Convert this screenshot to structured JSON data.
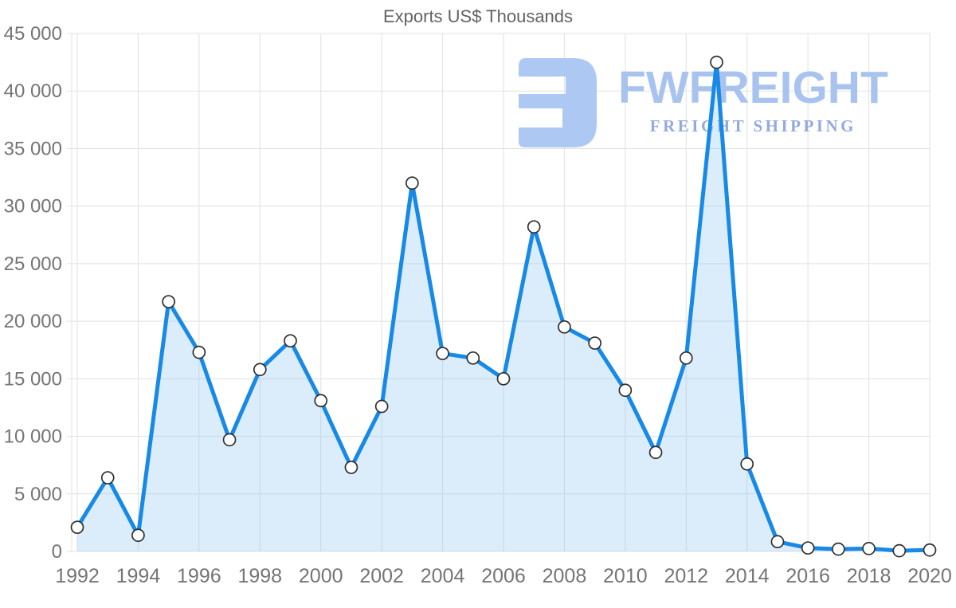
{
  "page": {
    "background": "#ffffff"
  },
  "watermark": {
    "brand": "FWFREIGHT",
    "tagline": "FREIGHT SHIPPING",
    "mark_color": "#adc8f3",
    "brand_color": "#a9c3ef",
    "tagline_color": "#93aadf"
  },
  "chart_data": {
    "type": "area",
    "title": "Exports US$ Thousands",
    "x": [
      1992,
      1993,
      1994,
      1995,
      1996,
      1997,
      1998,
      1999,
      2000,
      2001,
      2002,
      2003,
      2004,
      2005,
      2006,
      2007,
      2008,
      2009,
      2010,
      2011,
      2012,
      2013,
      2014,
      2015,
      2016,
      2017,
      2018,
      2019,
      2020
    ],
    "series": [
      {
        "name": "Exports US$ Thousands",
        "values": [
          2100,
          6400,
          1400,
          21700,
          17300,
          9700,
          15800,
          18300,
          13100,
          7300,
          12600,
          32000,
          17200,
          16800,
          15000,
          28200,
          19500,
          18100,
          14000,
          8600,
          16800,
          42500,
          7600,
          850,
          300,
          200,
          250,
          60,
          120
        ]
      }
    ],
    "xlabel": "",
    "ylabel": "",
    "ylim": [
      0,
      45000
    ],
    "xlim": [
      1992,
      2020
    ],
    "y_ticks": [
      0,
      5000,
      10000,
      15000,
      20000,
      25000,
      30000,
      35000,
      40000,
      45000
    ],
    "y_tick_labels": [
      "0",
      "5 000",
      "10 000",
      "15 000",
      "20 000",
      "25 000",
      "30 000",
      "35 000",
      "40 000",
      "45 000"
    ],
    "x_tick_step": 2,
    "x_tick_labels": [
      "1992",
      "1994",
      "1996",
      "1998",
      "2000",
      "2002",
      "2004",
      "2006",
      "2008",
      "2010",
      "2012",
      "2014",
      "2016",
      "2018",
      "2020"
    ],
    "grid": true,
    "legend": "none",
    "marker": "circle",
    "colors": {
      "line": "#1789e6",
      "fill": "rgba(144,198,242,0.32)",
      "marker_fill": "#ffffff",
      "marker_stroke": "#2f2f2f",
      "grid": "#e1e1e1",
      "tick_text": "#757575",
      "title_text": "#636363"
    }
  }
}
